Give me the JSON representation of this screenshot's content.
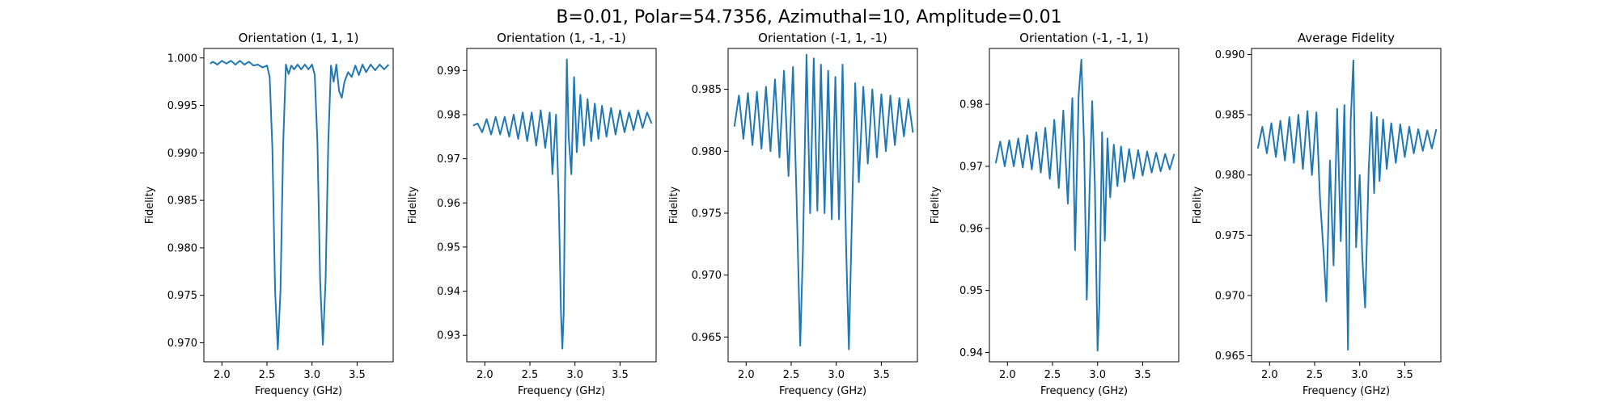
{
  "suptitle": "B=0.01, Polar=54.7356, Azimuthal=10, Amplitude=0.01",
  "colors": {
    "line": "#1f77b4",
    "axes": "#000000",
    "background": "#ffffff"
  },
  "chart_data": [
    {
      "type": "line",
      "title": "Orientation (1, 1, 1)",
      "xlabel": "Frequency (GHz)",
      "ylabel": "Fidelity",
      "xlim": [
        1.8,
        3.9
      ],
      "ylim": [
        0.968,
        1.001
      ],
      "xticks": [
        "2.0",
        "2.5",
        "3.0",
        "3.5"
      ],
      "yticks": [
        "0.970",
        "0.975",
        "0.980",
        "0.985",
        "0.990",
        "0.995",
        "1.000"
      ],
      "grid": false,
      "series": [
        {
          "x": [
            1.87,
            1.9,
            1.95,
            2.0,
            2.05,
            2.1,
            2.15,
            2.2,
            2.25,
            2.3,
            2.35,
            2.4,
            2.45,
            2.5,
            2.53,
            2.56,
            2.59,
            2.62,
            2.65,
            2.68,
            2.71,
            2.74,
            2.77,
            2.8,
            2.84,
            2.88,
            2.92,
            2.96,
            3.0,
            3.03,
            3.06,
            3.09,
            3.12,
            3.15,
            3.18,
            3.21,
            3.24,
            3.27,
            3.3,
            3.33,
            3.36,
            3.4,
            3.44,
            3.48,
            3.52,
            3.56,
            3.6,
            3.65,
            3.7,
            3.75,
            3.8,
            3.85
          ],
          "y": [
            0.9994,
            0.9996,
            0.9993,
            0.9997,
            0.9994,
            0.9997,
            0.9993,
            0.9997,
            0.9993,
            0.9996,
            0.9992,
            0.9993,
            0.999,
            0.9992,
            0.998,
            0.9905,
            0.9755,
            0.9693,
            0.9755,
            0.991,
            0.9993,
            0.9983,
            0.9992,
            0.9988,
            0.9993,
            0.9988,
            0.9993,
            0.9988,
            0.9993,
            0.9982,
            0.991,
            0.9765,
            0.9698,
            0.9765,
            0.991,
            0.9992,
            0.9975,
            0.9993,
            0.9965,
            0.9958,
            0.9975,
            0.9985,
            0.998,
            0.9992,
            0.9982,
            0.9993,
            0.9985,
            0.9993,
            0.9987,
            0.9993,
            0.9988,
            0.9993
          ]
        }
      ]
    },
    {
      "type": "line",
      "title": "Orientation (1, -1, -1)",
      "xlabel": "Frequency (GHz)",
      "ylabel": "Fidelity",
      "xlim": [
        1.8,
        3.9
      ],
      "ylim": [
        0.924,
        0.995
      ],
      "xticks": [
        "2.0",
        "2.5",
        "3.0",
        "3.5"
      ],
      "yticks": [
        "0.93",
        "0.94",
        "0.95",
        "0.96",
        "0.97",
        "0.98",
        "0.99"
      ],
      "grid": false,
      "series": [
        {
          "x": [
            1.87,
            1.92,
            1.97,
            2.02,
            2.07,
            2.12,
            2.17,
            2.22,
            2.27,
            2.32,
            2.37,
            2.42,
            2.47,
            2.52,
            2.57,
            2.62,
            2.67,
            2.72,
            2.75,
            2.79,
            2.82,
            2.845,
            2.86,
            2.875,
            2.89,
            2.91,
            2.93,
            2.96,
            2.99,
            3.02,
            3.06,
            3.1,
            3.14,
            3.18,
            3.22,
            3.26,
            3.3,
            3.35,
            3.4,
            3.45,
            3.5,
            3.55,
            3.6,
            3.65,
            3.7,
            3.75,
            3.8,
            3.85
          ],
          "y": [
            0.9775,
            0.978,
            0.976,
            0.979,
            0.9755,
            0.9795,
            0.9755,
            0.9795,
            0.975,
            0.98,
            0.9745,
            0.9805,
            0.974,
            0.9805,
            0.973,
            0.981,
            0.9725,
            0.9805,
            0.9665,
            0.98,
            0.9605,
            0.935,
            0.927,
            0.935,
            0.965,
            0.9925,
            0.975,
            0.9665,
            0.9885,
            0.9715,
            0.9845,
            0.973,
            0.9835,
            0.974,
            0.9825,
            0.9745,
            0.982,
            0.975,
            0.9815,
            0.9755,
            0.981,
            0.976,
            0.9805,
            0.9765,
            0.981,
            0.977,
            0.9805,
            0.978
          ]
        }
      ]
    },
    {
      "type": "line",
      "title": "Orientation (-1, 1, -1)",
      "xlabel": "Frequency (GHz)",
      "ylabel": "Fidelity",
      "xlim": [
        1.8,
        3.9
      ],
      "ylim": [
        0.963,
        0.9883
      ],
      "xticks": [
        "2.0",
        "2.5",
        "3.0",
        "3.5"
      ],
      "yticks": [
        "0.965",
        "0.970",
        "0.975",
        "0.980",
        "0.985"
      ],
      "grid": false,
      "series": [
        {
          "x": [
            1.87,
            1.92,
            1.97,
            2.02,
            2.07,
            2.12,
            2.17,
            2.22,
            2.27,
            2.32,
            2.37,
            2.42,
            2.47,
            2.52,
            2.56,
            2.6,
            2.63,
            2.67,
            2.71,
            2.75,
            2.79,
            2.83,
            2.87,
            2.91,
            2.95,
            2.99,
            3.03,
            3.07,
            3.11,
            3.14,
            3.17,
            3.21,
            3.25,
            3.3,
            3.35,
            3.4,
            3.45,
            3.5,
            3.55,
            3.6,
            3.65,
            3.7,
            3.75,
            3.8,
            3.85
          ],
          "y": [
            0.982,
            0.9845,
            0.981,
            0.9847,
            0.9805,
            0.9848,
            0.9802,
            0.9852,
            0.98,
            0.9858,
            0.9795,
            0.9865,
            0.978,
            0.9868,
            0.976,
            0.9643,
            0.972,
            0.9878,
            0.975,
            0.9875,
            0.9752,
            0.987,
            0.975,
            0.9865,
            0.9745,
            0.986,
            0.9745,
            0.987,
            0.972,
            0.964,
            0.9735,
            0.9855,
            0.9775,
            0.9852,
            0.979,
            0.985,
            0.9795,
            0.9846,
            0.98,
            0.9845,
            0.9805,
            0.9843,
            0.9812,
            0.9842,
            0.9815
          ]
        }
      ]
    },
    {
      "type": "line",
      "title": "Orientation (-1, -1, 1)",
      "xlabel": "Frequency (GHz)",
      "ylabel": "Fidelity",
      "xlim": [
        1.8,
        3.9
      ],
      "ylim": [
        0.9385,
        0.989
      ],
      "xticks": [
        "2.0",
        "2.5",
        "3.0",
        "3.5"
      ],
      "yticks": [
        "0.94",
        "0.95",
        "0.96",
        "0.97",
        "0.98"
      ],
      "grid": false,
      "series": [
        {
          "x": [
            1.87,
            1.92,
            1.97,
            2.02,
            2.07,
            2.12,
            2.17,
            2.22,
            2.27,
            2.32,
            2.37,
            2.42,
            2.47,
            2.52,
            2.57,
            2.62,
            2.67,
            2.72,
            2.75,
            2.79,
            2.82,
            2.85,
            2.88,
            2.91,
            2.94,
            2.97,
            3.0,
            3.02,
            3.05,
            3.08,
            3.11,
            3.14,
            3.18,
            3.22,
            3.26,
            3.3,
            3.35,
            3.4,
            3.45,
            3.5,
            3.55,
            3.6,
            3.65,
            3.7,
            3.75,
            3.8,
            3.85
          ],
          "y": [
            0.9705,
            0.974,
            0.97,
            0.9742,
            0.97,
            0.9745,
            0.9698,
            0.975,
            0.9695,
            0.9755,
            0.969,
            0.9762,
            0.968,
            0.9775,
            0.9665,
            0.979,
            0.964,
            0.981,
            0.9565,
            0.9815,
            0.9872,
            0.9735,
            0.9485,
            0.9655,
            0.9805,
            0.967,
            0.9403,
            0.9478,
            0.9755,
            0.958,
            0.9745,
            0.965,
            0.9735,
            0.9668,
            0.9732,
            0.9675,
            0.9728,
            0.968,
            0.9726,
            0.9685,
            0.9724,
            0.969,
            0.9722,
            0.9692,
            0.972,
            0.9695,
            0.972
          ]
        }
      ]
    },
    {
      "type": "line",
      "title": "Average Fidelity",
      "xlabel": "Frequency (GHz)",
      "ylabel": "Fidelity",
      "xlim": [
        1.8,
        3.9
      ],
      "ylim": [
        0.9645,
        0.9905
      ],
      "xticks": [
        "2.0",
        "2.5",
        "3.0",
        "3.5"
      ],
      "yticks": [
        "0.965",
        "0.970",
        "0.975",
        "0.980",
        "0.985",
        "0.990"
      ],
      "grid": false,
      "series": [
        {
          "x": [
            1.87,
            1.92,
            1.97,
            2.02,
            2.07,
            2.12,
            2.17,
            2.22,
            2.27,
            2.32,
            2.37,
            2.42,
            2.47,
            2.52,
            2.56,
            2.6,
            2.63,
            2.67,
            2.71,
            2.75,
            2.79,
            2.83,
            2.87,
            2.9,
            2.93,
            2.96,
            3.0,
            3.03,
            3.06,
            3.1,
            3.13,
            3.16,
            3.19,
            3.22,
            3.26,
            3.3,
            3.35,
            3.4,
            3.45,
            3.5,
            3.55,
            3.6,
            3.65,
            3.7,
            3.75,
            3.8,
            3.85
          ],
          "y": [
            0.9822,
            0.984,
            0.9818,
            0.9843,
            0.9815,
            0.9845,
            0.9812,
            0.9848,
            0.981,
            0.985,
            0.9805,
            0.9853,
            0.98,
            0.9852,
            0.978,
            0.9735,
            0.9695,
            0.9812,
            0.9725,
            0.9855,
            0.9745,
            0.9858,
            0.9655,
            0.9845,
            0.9895,
            0.974,
            0.98,
            0.973,
            0.969,
            0.9805,
            0.9852,
            0.9785,
            0.9848,
            0.9795,
            0.9846,
            0.9805,
            0.9843,
            0.981,
            0.9842,
            0.9815,
            0.984,
            0.9818,
            0.9838,
            0.982,
            0.9837,
            0.9822,
            0.9838
          ]
        }
      ]
    }
  ]
}
